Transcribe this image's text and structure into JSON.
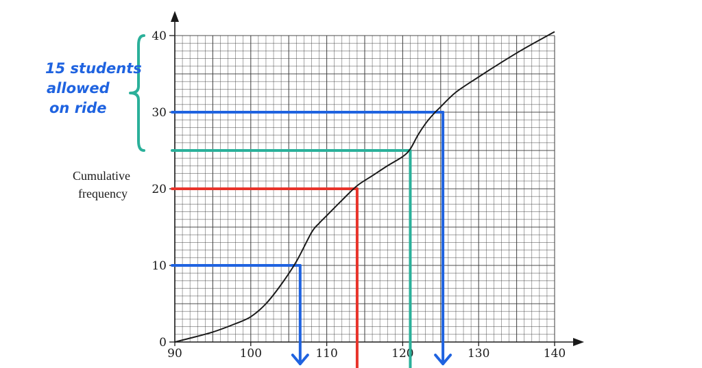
{
  "chart_data": {
    "type": "line",
    "title": "",
    "xlabel": "",
    "ylabel": "Cumulative frequency",
    "ylabel_lines": [
      "Cumulative",
      "frequency"
    ],
    "xlim": [
      90,
      140
    ],
    "ylim": [
      0,
      40
    ],
    "x_ticks": [
      90,
      100,
      110,
      120,
      130,
      140
    ],
    "y_ticks": [
      0,
      10,
      20,
      30,
      40
    ],
    "grid": true,
    "series": [
      {
        "points": [
          [
            90,
            0
          ],
          [
            92,
            0.5
          ],
          [
            95,
            1.3
          ],
          [
            98,
            2.4
          ],
          [
            100,
            3.3
          ],
          [
            102,
            5
          ],
          [
            104,
            7.5
          ],
          [
            106,
            10.5
          ],
          [
            108,
            14.3
          ],
          [
            109,
            15.5
          ],
          [
            110,
            16.5
          ],
          [
            112,
            18.5
          ],
          [
            114,
            20.4
          ],
          [
            116,
            21.7
          ],
          [
            118,
            23
          ],
          [
            120,
            24.2
          ],
          [
            121,
            25.2
          ],
          [
            122,
            27
          ],
          [
            123,
            28.5
          ],
          [
            124,
            29.7
          ],
          [
            125,
            30.7
          ],
          [
            127,
            32.6
          ],
          [
            130,
            34.6
          ],
          [
            133,
            36.5
          ],
          [
            136,
            38.3
          ],
          [
            140,
            40.5
          ]
        ]
      }
    ],
    "annotations": {
      "reading_lines": [
        {
          "color": "#1f63e0",
          "y": 10,
          "x": 106.5,
          "arrow": true
        },
        {
          "color": "#e8332a",
          "y": 20,
          "x": 114,
          "arrow": false
        },
        {
          "color": "#2bb09a",
          "y": 25,
          "x": 121,
          "arrow": false
        },
        {
          "color": "#1f63e0",
          "y": 30,
          "x": 125.3,
          "arrow": true
        }
      ],
      "brace": {
        "color": "#2bb09a",
        "from": 25,
        "to": 40
      },
      "note_lines": [
        "15 students",
        "allowed",
        "on ride"
      ],
      "note_color": "#1f63e0"
    }
  }
}
